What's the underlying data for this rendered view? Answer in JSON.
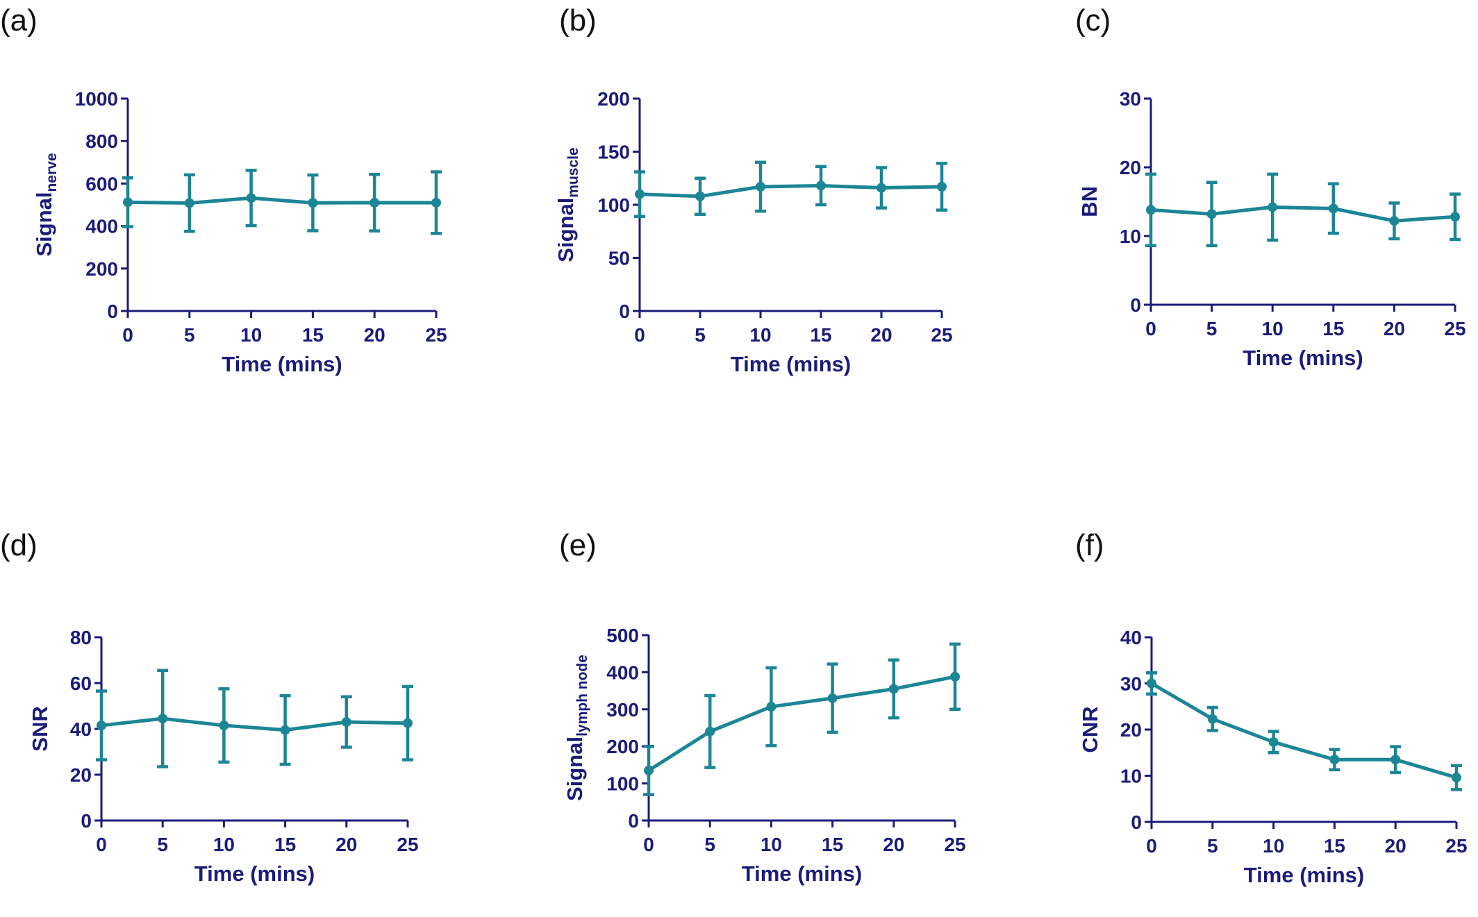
{
  "style": {
    "axis_color": "#1b1b7a",
    "series_color": "#1c8596",
    "panel_letter_color": "#111111"
  },
  "chart_data": [
    {
      "panel": "(a)",
      "type": "line",
      "x": [
        0,
        5,
        10,
        15,
        20,
        25
      ],
      "values": [
        512,
        508,
        532,
        509,
        510,
        510
      ],
      "errors": [
        115,
        133,
        130,
        131,
        133,
        145
      ],
      "xlabel": "Time (mins)",
      "ylabel": "Signal",
      "ylabel_sub": "nerve",
      "xticks": [
        "0",
        "5",
        "10",
        "15",
        "20",
        "25"
      ],
      "yticks": [
        "0",
        "200",
        "400",
        "600",
        "800",
        "1000"
      ],
      "xlim": [
        0,
        25
      ],
      "ylim": [
        0,
        1000
      ],
      "error_bars": true,
      "grid": false
    },
    {
      "panel": "(b)",
      "type": "line",
      "x": [
        0,
        5,
        10,
        15,
        20,
        25
      ],
      "values": [
        110,
        108,
        117,
        118,
        116,
        117
      ],
      "errors": [
        21,
        17,
        23,
        18,
        19,
        22
      ],
      "xlabel": "Time (mins)",
      "ylabel": "Signal",
      "ylabel_sub": "muscle",
      "xticks": [
        "0",
        "5",
        "10",
        "15",
        "20",
        "25"
      ],
      "yticks": [
        "0",
        "50",
        "100",
        "150",
        "200"
      ],
      "xlim": [
        0,
        25
      ],
      "ylim": [
        0,
        200
      ],
      "error_bars": true,
      "grid": false
    },
    {
      "panel": "(c)",
      "type": "line",
      "x": [
        0,
        5,
        10,
        15,
        20,
        25
      ],
      "values": [
        13.8,
        13.2,
        14.2,
        14.0,
        12.2,
        12.8
      ],
      "errors": [
        5.2,
        4.6,
        4.8,
        3.6,
        2.6,
        3.3
      ],
      "xlabel": "Time (mins)",
      "ylabel": "BN",
      "ylabel_sub": "",
      "xticks": [
        "0",
        "5",
        "10",
        "15",
        "20",
        "25"
      ],
      "yticks": [
        "0",
        "10",
        "20",
        "30"
      ],
      "xlim": [
        0,
        25
      ],
      "ylim": [
        0,
        30
      ],
      "error_bars": true,
      "grid": false
    },
    {
      "panel": "(d)",
      "type": "line",
      "x": [
        0,
        5,
        10,
        15,
        20,
        25
      ],
      "values": [
        41.5,
        44.5,
        41.5,
        39.5,
        43,
        42.5
      ],
      "errors": [
        15,
        21,
        16,
        15,
        11,
        16
      ],
      "xlabel": "Time (mins)",
      "ylabel": "SNR",
      "ylabel_sub": "",
      "xticks": [
        "0",
        "5",
        "10",
        "15",
        "20",
        "25"
      ],
      "yticks": [
        "0",
        "20",
        "40",
        "60",
        "80"
      ],
      "xlim": [
        0,
        25
      ],
      "ylim": [
        0,
        80
      ],
      "error_bars": true,
      "grid": false
    },
    {
      "panel": "(e)",
      "type": "line",
      "x": [
        0,
        5,
        10,
        15,
        20,
        25
      ],
      "values": [
        135,
        240,
        307,
        330,
        355,
        388
      ],
      "errors": [
        65,
        97,
        105,
        92,
        78,
        88
      ],
      "xlabel": "Time (mins)",
      "ylabel": "Signal",
      "ylabel_sub": "lymph node",
      "xticks": [
        "0",
        "5",
        "10",
        "15",
        "20",
        "25"
      ],
      "yticks": [
        "0",
        "100",
        "200",
        "300",
        "400",
        "500"
      ],
      "xlim": [
        0,
        25
      ],
      "ylim": [
        0,
        500
      ],
      "error_bars": true,
      "grid": false
    },
    {
      "panel": "(f)",
      "type": "line",
      "x": [
        0,
        5,
        10,
        15,
        20,
        25
      ],
      "values": [
        30,
        22.3,
        17.3,
        13.5,
        13.5,
        9.6
      ],
      "errors": [
        2.3,
        2.5,
        2.3,
        2.2,
        2.8,
        2.6
      ],
      "xlabel": "Time (mins)",
      "ylabel": "CNR",
      "ylabel_sub": "",
      "xticks": [
        "0",
        "5",
        "10",
        "15",
        "20",
        "25"
      ],
      "yticks": [
        "0",
        "10",
        "20",
        "30",
        "40"
      ],
      "xlim": [
        0,
        25
      ],
      "ylim": [
        0,
        40
      ],
      "error_bars": true,
      "grid": false
    }
  ]
}
